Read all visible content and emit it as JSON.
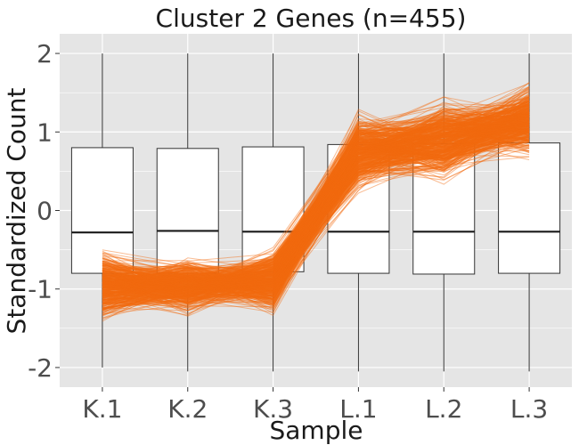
{
  "chart_data": {
    "type": "box",
    "title": "Cluster 2 Genes (n=455)",
    "xlabel": "Sample",
    "ylabel": "Standardized Count",
    "categories": [
      "K.1",
      "K.2",
      "K.3",
      "L.1",
      "L.2",
      "L.3"
    ],
    "ylim": [
      -2.25,
      2.25
    ],
    "yticks": [
      -2,
      -1,
      0,
      1,
      2
    ],
    "grid": true,
    "boxes": [
      {
        "category": "K.1",
        "whisker_low": -2.0,
        "q1": -0.8,
        "median": -0.28,
        "q3": 0.8,
        "whisker_high": 2.0
      },
      {
        "category": "K.2",
        "whisker_low": -2.05,
        "q1": -0.8,
        "median": -0.26,
        "q3": 0.79,
        "whisker_high": 2.0
      },
      {
        "category": "K.3",
        "whisker_low": -2.05,
        "q1": -0.78,
        "median": -0.27,
        "q3": 0.81,
        "whisker_high": 2.0
      },
      {
        "category": "L.1",
        "whisker_low": -2.05,
        "q1": -0.8,
        "median": -0.27,
        "q3": 0.84,
        "whisker_high": 2.0
      },
      {
        "category": "L.2",
        "whisker_low": -2.05,
        "q1": -0.81,
        "median": -0.27,
        "q3": 0.85,
        "whisker_high": 2.0
      },
      {
        "category": "L.3",
        "whisker_low": -2.05,
        "q1": -0.8,
        "median": -0.27,
        "q3": 0.86,
        "whisker_high": 2.0
      }
    ],
    "gene_profiles": {
      "count": 455,
      "color": "#F26B0F",
      "mean_profile": [
        -0.95,
        -0.95,
        -0.9,
        0.75,
        0.9,
        1.15
      ],
      "spread": [
        0.18,
        0.15,
        0.16,
        0.2,
        0.22,
        0.18
      ]
    },
    "colors": {
      "panel_bg": "#E5E5E5",
      "grid": "#FFFFFF",
      "box_fill": "#FFFFFF",
      "box_stroke": "#333333",
      "lines": "#F26B0F"
    }
  }
}
